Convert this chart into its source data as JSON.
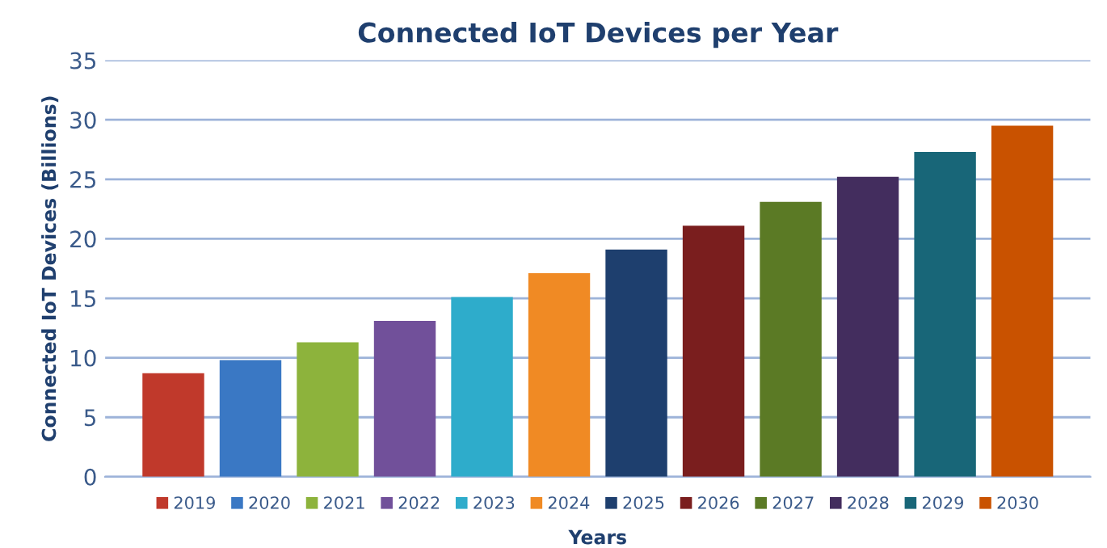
{
  "chart_data": {
    "type": "bar",
    "title": "Connected IoT Devices per Year",
    "xlabel": "Years",
    "ylabel": "Connected IoT Devices (Billions)",
    "categories": [
      null
    ],
    "series": [
      {
        "name": "2019",
        "color": "#c0392b",
        "values": [
          8.7
        ]
      },
      {
        "name": "2020",
        "color": "#3a78c4",
        "values": [
          9.8
        ]
      },
      {
        "name": "2021",
        "color": "#8db33c",
        "values": [
          11.3
        ]
      },
      {
        "name": "2022",
        "color": "#71509a",
        "values": [
          13.1
        ]
      },
      {
        "name": "2023",
        "color": "#2eaccb",
        "values": [
          15.1
        ]
      },
      {
        "name": "2024",
        "color": "#f08a24",
        "values": [
          17.1
        ]
      },
      {
        "name": "2025",
        "color": "#1e3f6e",
        "values": [
          19.1
        ]
      },
      {
        "name": "2026",
        "color": "#7a1e1e",
        "values": [
          21.1
        ]
      },
      {
        "name": "2027",
        "color": "#5b7a25",
        "values": [
          23.1
        ]
      },
      {
        "name": "2028",
        "color": "#432d5e",
        "values": [
          25.2
        ]
      },
      {
        "name": "2029",
        "color": "#186678",
        "values": [
          27.3
        ]
      },
      {
        "name": "2030",
        "color": "#c95200",
        "values": [
          29.5
        ]
      }
    ],
    "ylim": [
      0,
      35
    ],
    "yticks": [
      0,
      5,
      10,
      15,
      20,
      25,
      30,
      35
    ],
    "grid": "y",
    "legend": "bottom"
  }
}
